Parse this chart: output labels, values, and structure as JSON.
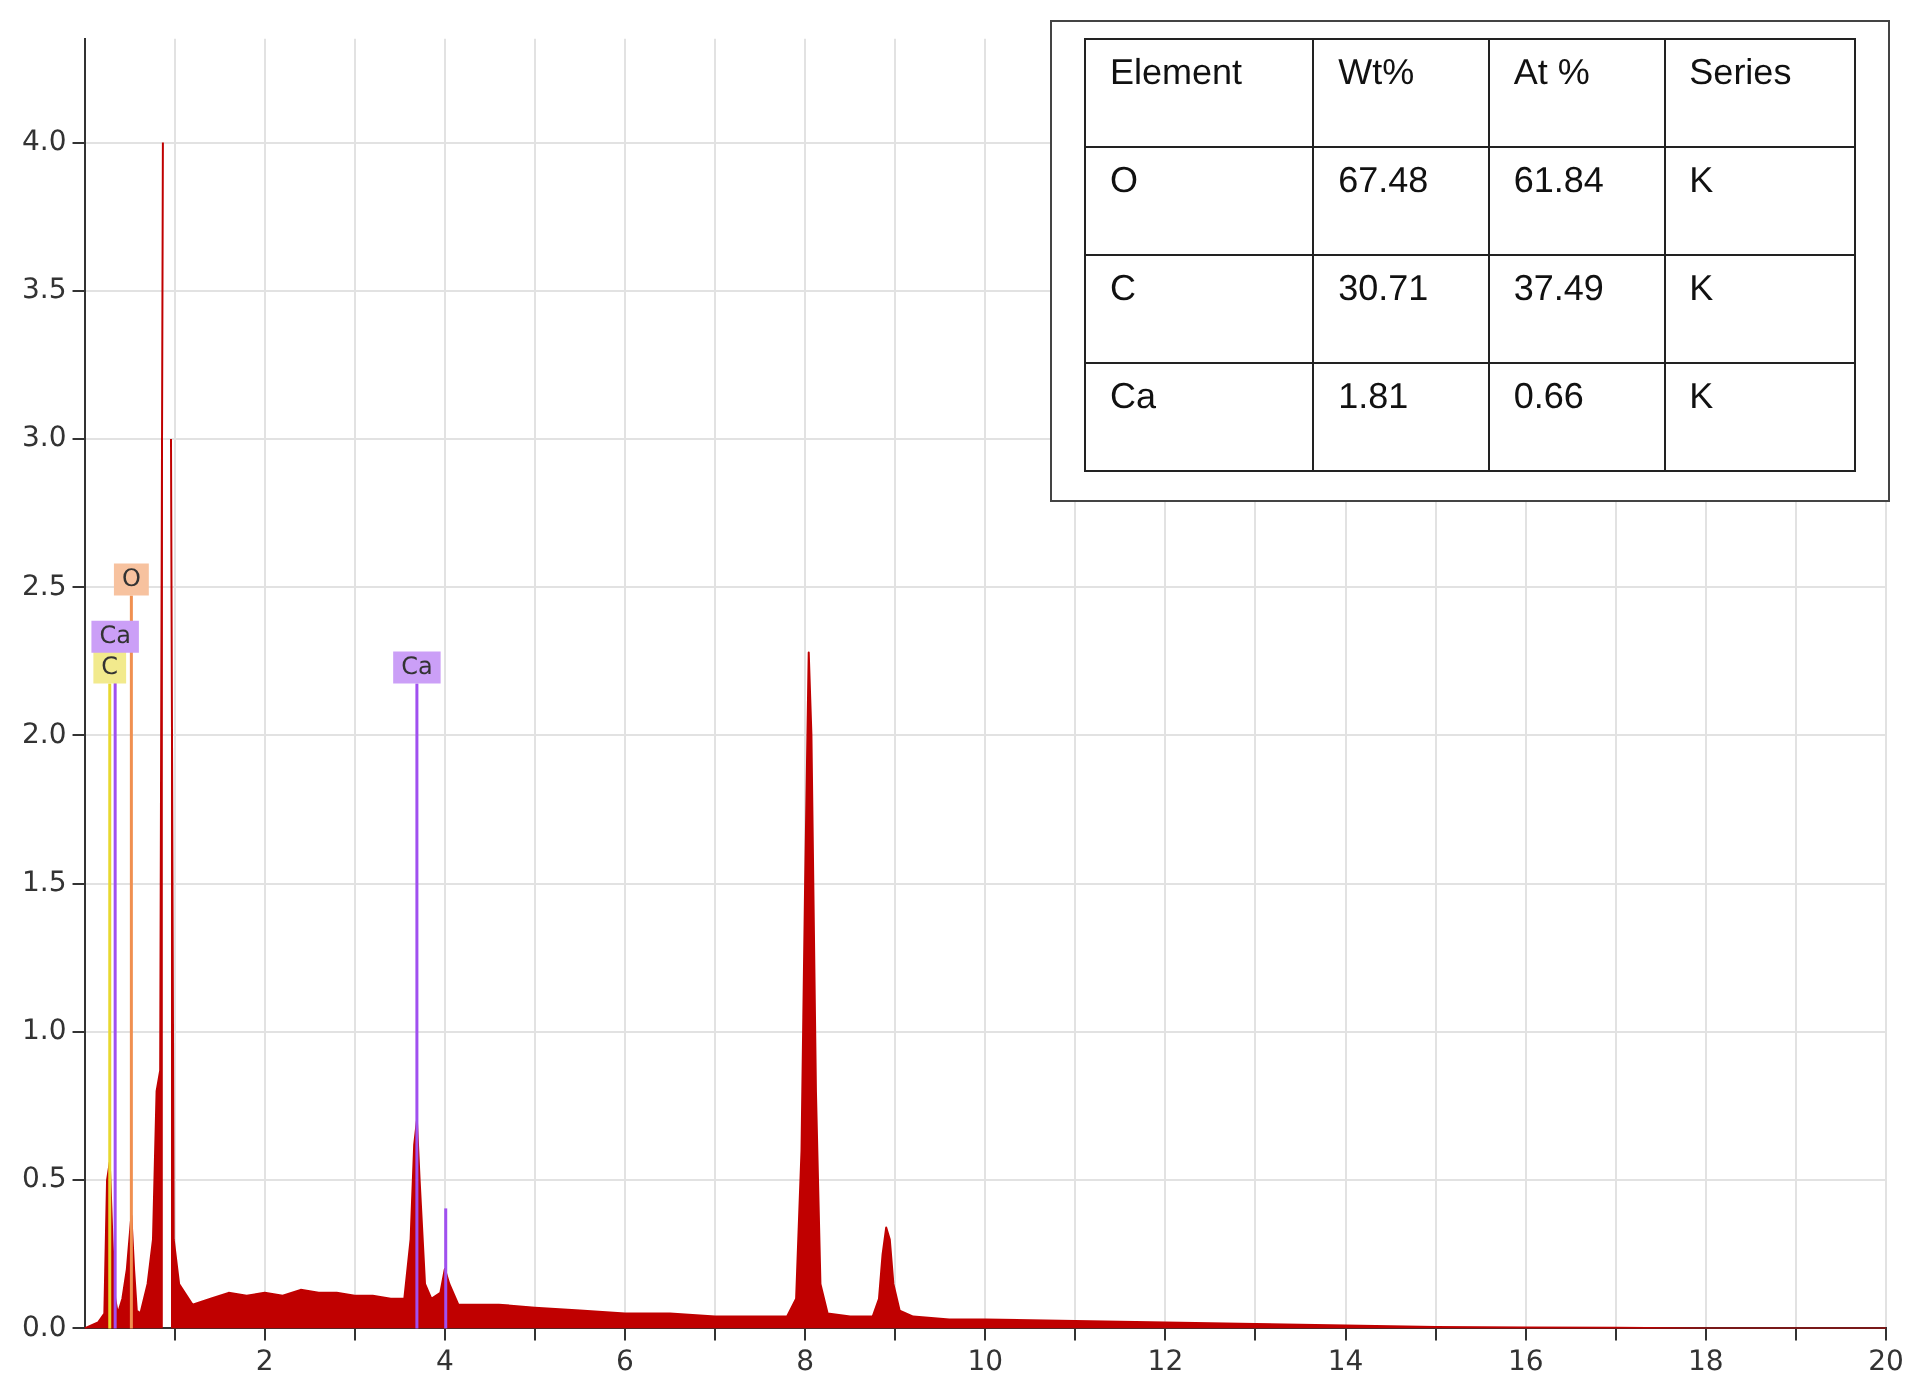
{
  "chart_data": {
    "type": "area",
    "x": [
      0,
      0.15,
      0.22,
      0.25,
      0.28,
      0.31,
      0.34,
      0.37,
      0.42,
      0.47,
      0.52,
      0.55,
      0.58,
      0.62,
      0.7,
      0.76,
      0.8,
      0.84,
      0.87,
      0.9,
      0.93,
      0.96,
      0.99,
      1.05,
      1.2,
      1.4,
      1.6,
      1.8,
      2.0,
      2.2,
      2.4,
      2.6,
      2.8,
      3.0,
      3.2,
      3.4,
      3.55,
      3.62,
      3.66,
      3.69,
      3.72,
      3.78,
      3.85,
      3.95,
      4.0,
      4.05,
      4.15,
      4.3,
      4.6,
      5.0,
      5.5,
      6.0,
      6.5,
      7.0,
      7.5,
      7.8,
      7.9,
      7.96,
      8.0,
      8.04,
      8.07,
      8.12,
      8.17,
      8.25,
      8.5,
      8.75,
      8.82,
      8.86,
      8.9,
      8.94,
      8.98,
      9.05,
      9.2,
      9.6,
      10,
      11,
      12,
      13,
      14,
      15,
      16,
      17,
      18,
      20
    ],
    "series": [
      {
        "color": "#c00000",
        "values": [
          0,
          0.02,
          0.05,
          0.5,
          0.56,
          0.3,
          0.1,
          0.05,
          0.1,
          0.2,
          0.38,
          0.2,
          0.06,
          0.05,
          0.15,
          0.3,
          0.8,
          0.87,
          4.0,
          null,
          null,
          3.0,
          0.3,
          0.15,
          0.08,
          0.1,
          0.12,
          0.11,
          0.12,
          0.11,
          0.13,
          0.12,
          0.12,
          0.11,
          0.11,
          0.1,
          0.1,
          0.3,
          0.62,
          0.7,
          0.5,
          0.15,
          0.1,
          0.12,
          0.2,
          0.15,
          0.08,
          0.08,
          0.08,
          0.07,
          0.06,
          0.05,
          0.05,
          0.04,
          0.04,
          0.04,
          0.1,
          0.6,
          1.5,
          2.28,
          2.0,
          0.8,
          0.15,
          0.05,
          0.04,
          0.04,
          0.1,
          0.25,
          0.34,
          0.3,
          0.15,
          0.06,
          0.04,
          0.03,
          0.03,
          0.025,
          0.02,
          0.015,
          0.01,
          0.005,
          0.003,
          0.002,
          0,
          0
        ]
      }
    ],
    "xlim": [
      0,
      20
    ],
    "xticks": [
      {
        "value": 1,
        "label": null
      },
      2,
      {
        "value": 3,
        "label": null
      },
      4,
      {
        "value": 5,
        "label": null
      },
      6,
      {
        "value": 7,
        "label": null
      },
      8,
      {
        "value": 9,
        "label": null
      },
      10,
      {
        "value": 11,
        "label": null
      },
      12,
      {
        "value": 13,
        "label": null
      },
      14,
      {
        "value": 15,
        "label": null
      },
      16,
      {
        "value": 17,
        "label": null
      },
      18,
      {
        "value": 19,
        "label": null
      },
      20
    ],
    "ylim": [
      0,
      4.35
    ],
    "yticks": [
      {
        "value": 0,
        "label": "0.0"
      },
      0.5,
      {
        "value": 1,
        "label": "1.0"
      },
      1.5,
      {
        "value": 2,
        "label": "2.0"
      },
      2.5,
      {
        "value": 3,
        "label": "3.0"
      },
      3.5,
      {
        "value": 4,
        "label": "4.0"
      }
    ],
    "grid": true,
    "ref_lines": [
      {
        "axis": "x",
        "value": 0.28,
        "label": "C",
        "color": "#e8d830"
      },
      {
        "axis": "x",
        "value": 0.34,
        "label": "Ca",
        "color": "#a050f0"
      },
      {
        "axis": "x",
        "value": 0.52,
        "label": "O",
        "color": "#f09050"
      },
      {
        "axis": "x",
        "value": 3.69,
        "label": "Ca",
        "color": "#a050f0"
      },
      {
        "axis": "x",
        "value": 4.01,
        "color": "#a050f0"
      }
    ],
    "annotations": [
      "Element",
      "Wt%",
      "At %",
      "Series",
      "O",
      "67.48",
      "61.84",
      "K",
      "C",
      "30.71",
      "37.49",
      "K",
      "Ca",
      "1.81",
      "0.66",
      "K"
    ]
  }
}
